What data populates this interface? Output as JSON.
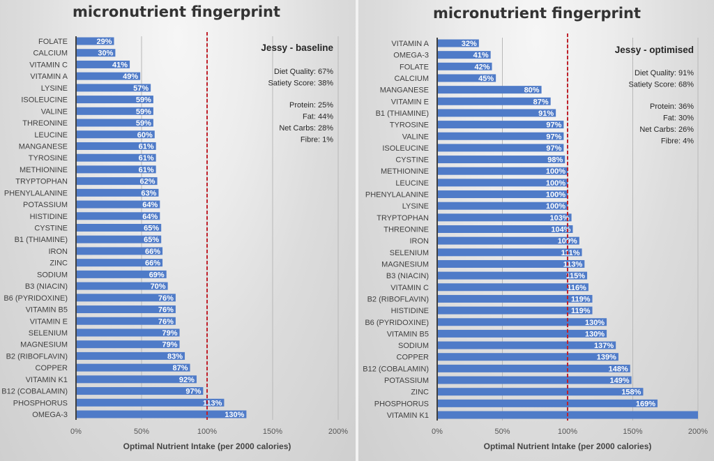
{
  "colors": {
    "bar": "#4f7bc8",
    "reference_line": "#c0202a",
    "grid": "#b8b8b8",
    "axis": "#404040"
  },
  "chart_data": [
    {
      "type": "bar",
      "orientation": "horizontal",
      "title": "micronutrient fingerprint",
      "xlabel": "Optimal Nutrient Intake (per 2000 calories)",
      "ylabel": "",
      "xlim": [
        0,
        200
      ],
      "x_ticks": [
        "0%",
        "50%",
        "100%",
        "150%",
        "200%"
      ],
      "grid": true,
      "reference_line": {
        "value": 100,
        "style": "dashed"
      },
      "info_box": {
        "title": "Jessy - baseline",
        "lines": [
          "Diet Quality: 67%",
          "Satiety Score: 38%",
          "",
          "Protein: 25%",
          "Fat: 44%",
          "Net Carbs: 28%",
          "Fibre: 1%"
        ]
      },
      "categories": [
        "FOLATE",
        "CALCIUM",
        "VITAMIN C",
        "VITAMIN A",
        "LYSINE",
        "ISOLEUCINE",
        "VALINE",
        "THREONINE",
        "LEUCINE",
        "MANGANESE",
        "TYROSINE",
        "METHIONINE",
        "TRYPTOPHAN",
        "PHENYLALANINE",
        "POTASSIUM",
        "HISTIDINE",
        "CYSTINE",
        "B1 (THIAMINE)",
        "IRON",
        "ZINC",
        "SODIUM",
        "B3 (NIACIN)",
        "B6 (PYRIDOXINE)",
        "VITAMIN B5",
        "VITAMIN E",
        "SELENIUM",
        "MAGNESIUM",
        "B2 (RIBOFLAVIN)",
        "COPPER",
        "VITAMIN K1",
        "B12 (COBALAMIN)",
        "PHOSPHORUS",
        "OMEGA-3"
      ],
      "values": [
        29,
        30,
        41,
        49,
        57,
        59,
        59,
        59,
        60,
        61,
        61,
        61,
        62,
        63,
        64,
        64,
        65,
        65,
        66,
        66,
        69,
        70,
        76,
        76,
        76,
        79,
        79,
        83,
        87,
        92,
        97,
        113,
        130
      ],
      "labels": [
        "29%",
        "30%",
        "41%",
        "49%",
        "57%",
        "59%",
        "59%",
        "59%",
        "60%",
        "61%",
        "61%",
        "61%",
        "62%",
        "63%",
        "64%",
        "64%",
        "65%",
        "65%",
        "66%",
        "66%",
        "69%",
        "70%",
        "76%",
        "76%",
        "76%",
        "79%",
        "79%",
        "83%",
        "87%",
        "92%",
        "97%",
        "113%",
        "130%"
      ]
    },
    {
      "type": "bar",
      "orientation": "horizontal",
      "title": "micronutrient fingerprint",
      "xlabel": "Optimal Nutrient Intake (per 2000 calories)",
      "ylabel": "",
      "xlim": [
        0,
        200
      ],
      "x_ticks": [
        "0%",
        "50%",
        "100%",
        "150%",
        "200%"
      ],
      "grid": true,
      "reference_line": {
        "value": 100,
        "style": "dashed"
      },
      "info_box": {
        "title": "Jessy - optimised",
        "lines": [
          "Diet Quality: 91%",
          "Satiety Score: 68%",
          "",
          "Protein: 36%",
          "Fat: 30%",
          "Net Carbs: 26%",
          "Fibre: 4%"
        ]
      },
      "categories": [
        "VITAMIN A",
        "OMEGA-3",
        "FOLATE",
        "CALCIUM",
        "MANGANESE",
        "VITAMIN E",
        "B1 (THIAMINE)",
        "TYROSINE",
        "VALINE",
        "ISOLEUCINE",
        "CYSTINE",
        "METHIONINE",
        "LEUCINE",
        "PHENYLALANINE",
        "LYSINE",
        "TRYPTOPHAN",
        "THREONINE",
        "IRON",
        "SELENIUM",
        "MAGNESIUM",
        "B3 (NIACIN)",
        "VITAMIN C",
        "B2 (RIBOFLAVIN)",
        "HISTIDINE",
        "B6 (PYRIDOXINE)",
        "VITAMIN B5",
        "SODIUM",
        "COPPER",
        "B12 (COBALAMIN)",
        "POTASSIUM",
        "ZINC",
        "PHOSPHORUS",
        "VITAMIN K1"
      ],
      "values": [
        32,
        41,
        42,
        45,
        80,
        87,
        91,
        97,
        97,
        97,
        98,
        100,
        100,
        100,
        100,
        103,
        104,
        109,
        111,
        113,
        115,
        116,
        119,
        119,
        130,
        130,
        137,
        139,
        148,
        149,
        158,
        169,
        200
      ],
      "labels": [
        "32%",
        "41%",
        "42%",
        "45%",
        "80%",
        "87%",
        "91%",
        "97%",
        "97%",
        "97%",
        "98%",
        "100%",
        "100%",
        "100%",
        "100%",
        "103%",
        "104%",
        "109%",
        "111%",
        "113%",
        "115%",
        "116%",
        "119%",
        "119%",
        "130%",
        "130%",
        "137%",
        "139%",
        "148%",
        "149%",
        "158%",
        "169%",
        ""
      ]
    }
  ]
}
